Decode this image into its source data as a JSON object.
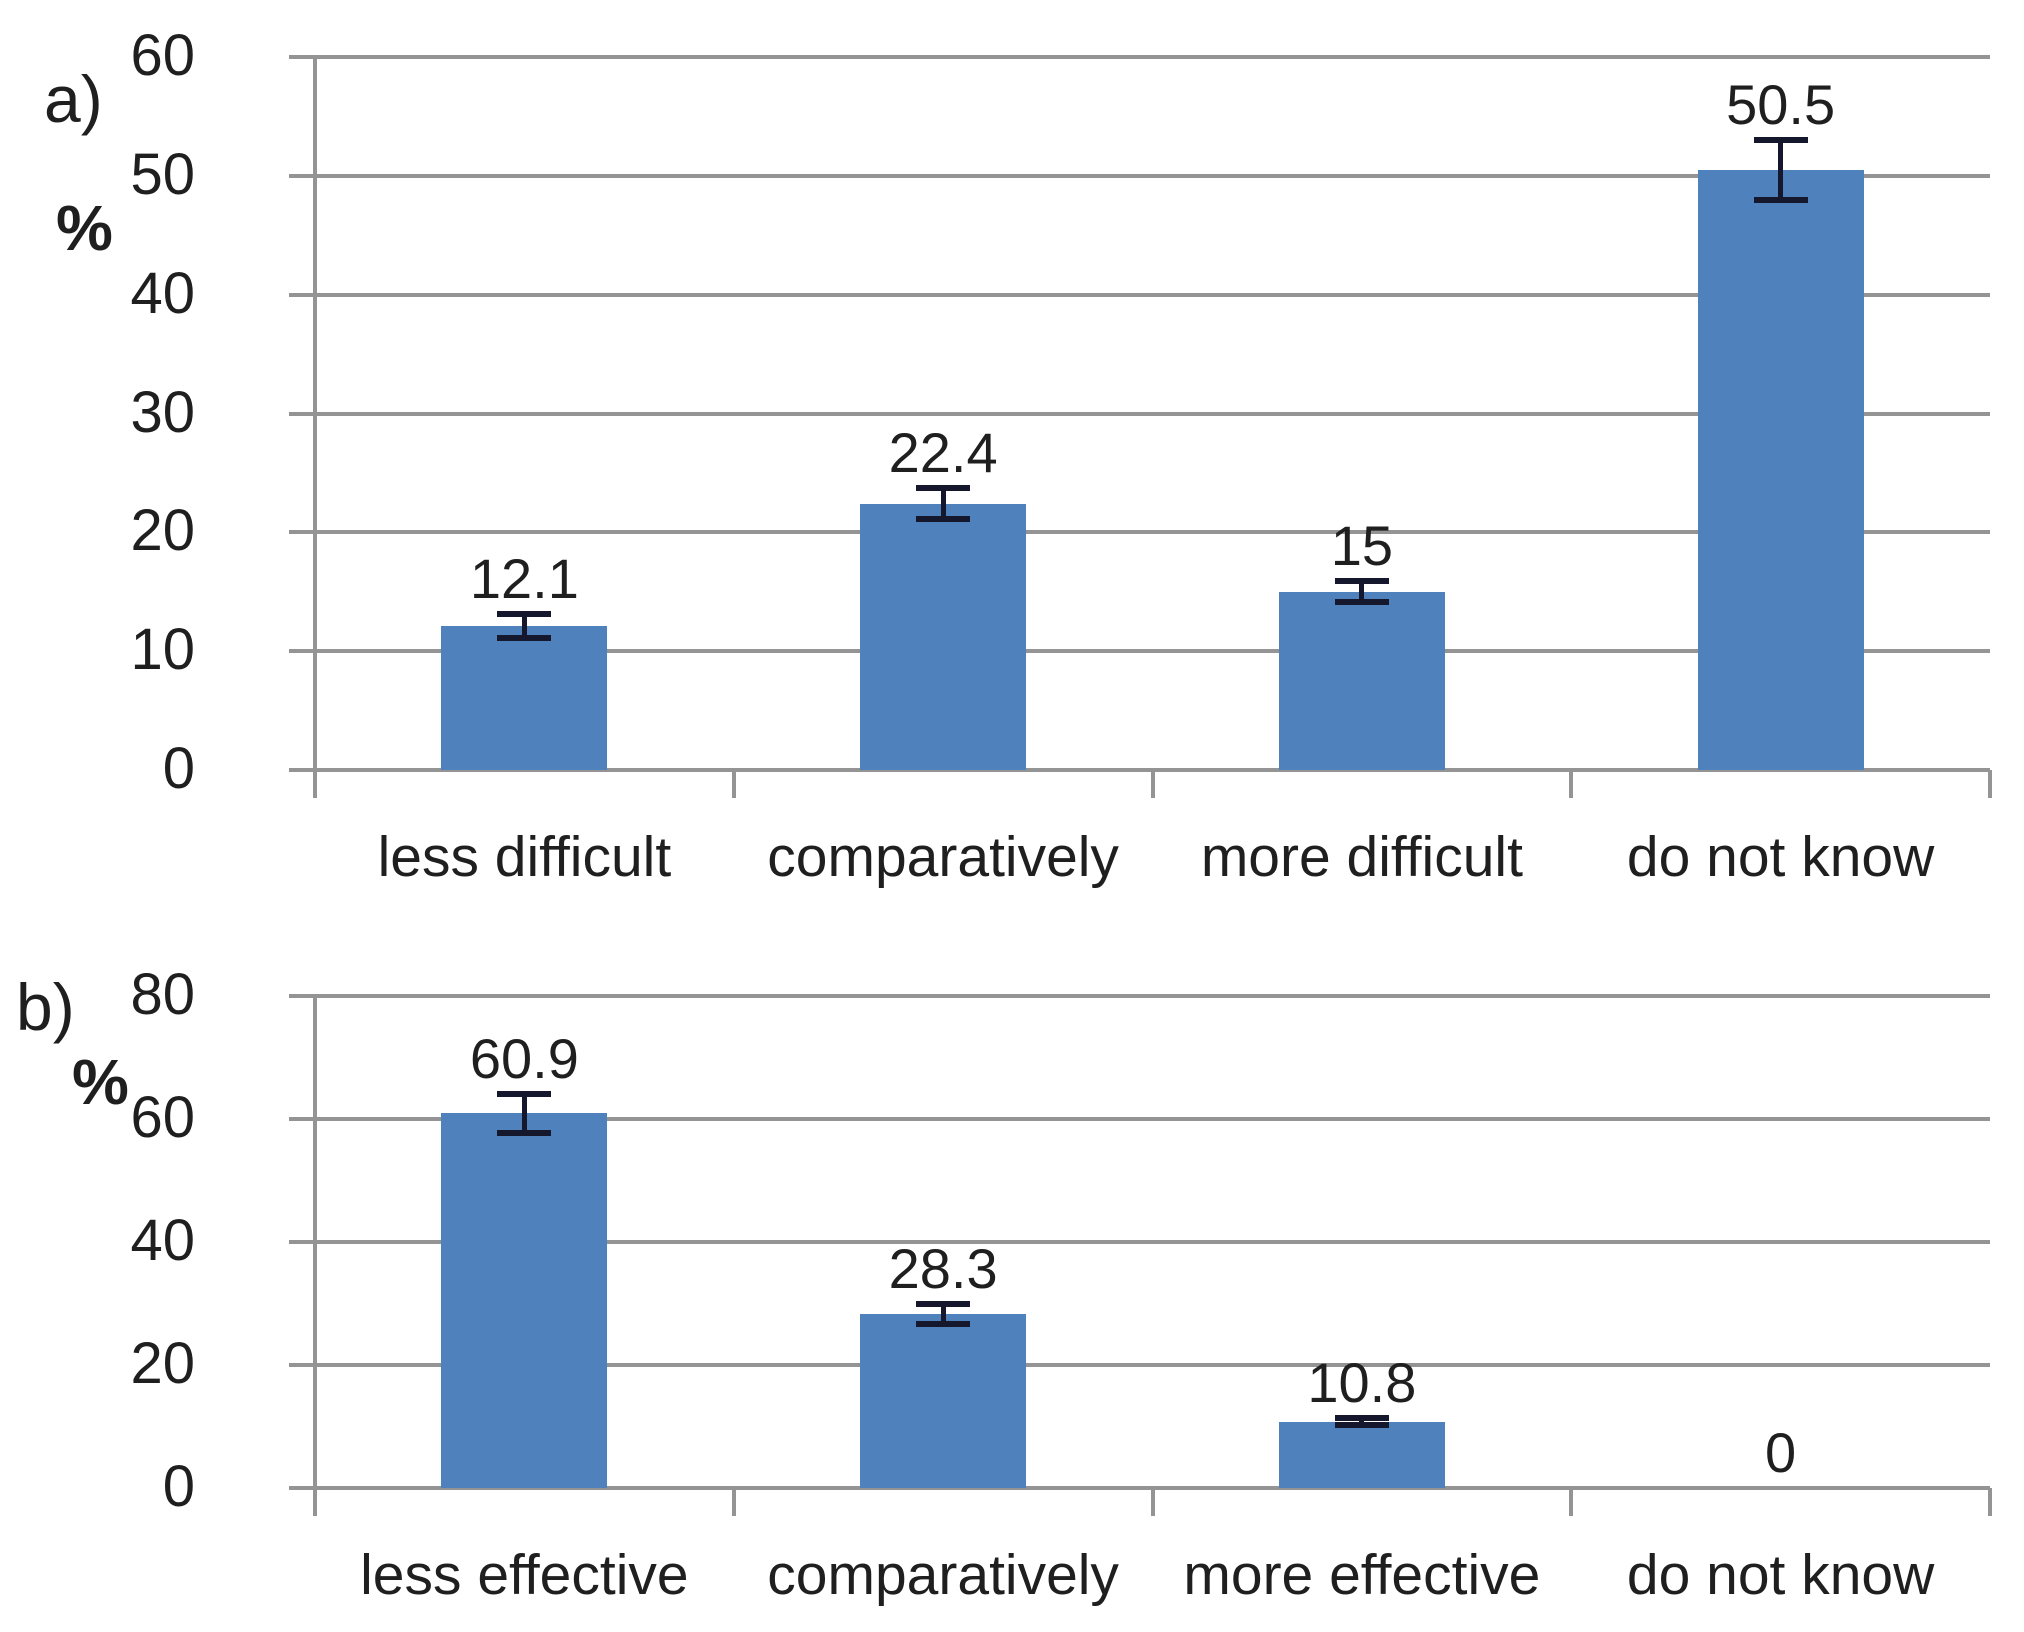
{
  "colors": {
    "bar": "#4F81BD",
    "grid": "#949494",
    "error_bar": "#15172d",
    "text": "#1f1f1f",
    "background": "#ffffff"
  },
  "chart_data": [
    {
      "type": "bar",
      "panel_label": "a)",
      "title": "",
      "xlabel": "",
      "ylabel": "%",
      "categories": [
        "less difficult",
        "comparatively",
        "more difficult",
        "do not know"
      ],
      "values": [
        12.1,
        22.4,
        15,
        50.5
      ],
      "data_labels": [
        "12.1",
        "22.4",
        "15",
        "50.5"
      ],
      "error_bars": [
        1.0,
        1.3,
        0.9,
        2.5
      ],
      "ylim": [
        0,
        60
      ],
      "yticks": [
        60,
        50,
        40,
        30,
        20,
        10,
        0
      ],
      "grid": true,
      "legend": false
    },
    {
      "type": "bar",
      "panel_label": "b)",
      "title": "",
      "xlabel": "",
      "ylabel": "%",
      "categories": [
        "less effective",
        "comparatively",
        "more effective",
        "do not know"
      ],
      "values": [
        60.9,
        28.3,
        10.8,
        0
      ],
      "data_labels": [
        "60.9",
        "28.3",
        "10.8",
        "0"
      ],
      "error_bars": [
        3.2,
        1.6,
        0.6,
        0
      ],
      "ylim": [
        0,
        80
      ],
      "yticks": [
        80,
        60,
        40,
        20,
        0
      ],
      "grid": true,
      "legend": false
    }
  ]
}
